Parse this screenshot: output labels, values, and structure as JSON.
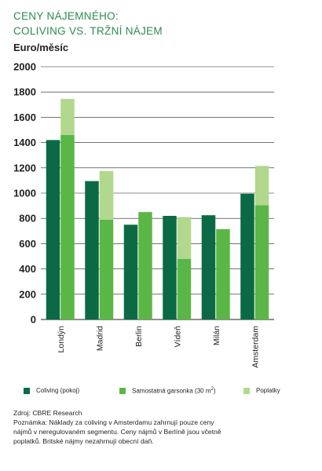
{
  "header": {
    "title_line1": "CENY NÁJEMNÉHO:",
    "title_line2": "COLIVING VS. TRŽNÍ NÁJEM",
    "unit": "Euro/měsíc"
  },
  "colors": {
    "coliving": "#0b6a45",
    "studio": "#5ab746",
    "fees": "#b1d88c",
    "grid": "#231f20",
    "title": "#2e8b4f"
  },
  "chart_data": {
    "type": "bar",
    "stacked_second_column": true,
    "categories": [
      "Londýn",
      "Madrid",
      "Berlin",
      "Vídeň",
      "Milán",
      "Amsterdam"
    ],
    "series": [
      {
        "name": "Coliving (pokoj)",
        "values": [
          1420,
          1095,
          750,
          820,
          825,
          995
        ]
      },
      {
        "name": "Samostatná garsonka (30 m²)",
        "values": [
          1460,
          790,
          850,
          480,
          715,
          905
        ]
      },
      {
        "name": "Poplatky",
        "values": [
          285,
          385,
          0,
          330,
          0,
          310
        ]
      }
    ],
    "ylim": [
      0,
      2000
    ],
    "yticks": [
      0,
      200,
      400,
      600,
      800,
      1000,
      1200,
      1400,
      1600,
      1800,
      2000
    ],
    "grid": true,
    "legend_position": "bottom"
  },
  "legend": {
    "coliving": "Coliving (pokoj)",
    "studio_prefix": "Samostatná garsonka (30 m",
    "studio_sup": "2",
    "studio_suffix": ")",
    "fees": "Poplatky"
  },
  "notes": {
    "source": "Zdroj: CBRE Research",
    "line1": "Poznámka: Náklady za coliving v Amsterdamu zahrnují pouze ceny",
    "line2": "nájmů v neregulovaném segmentu. Ceny nájmů v Berlíně jsou včetně",
    "line3": "poplatků. Britské nájmy nezahrnují obecní daň."
  }
}
